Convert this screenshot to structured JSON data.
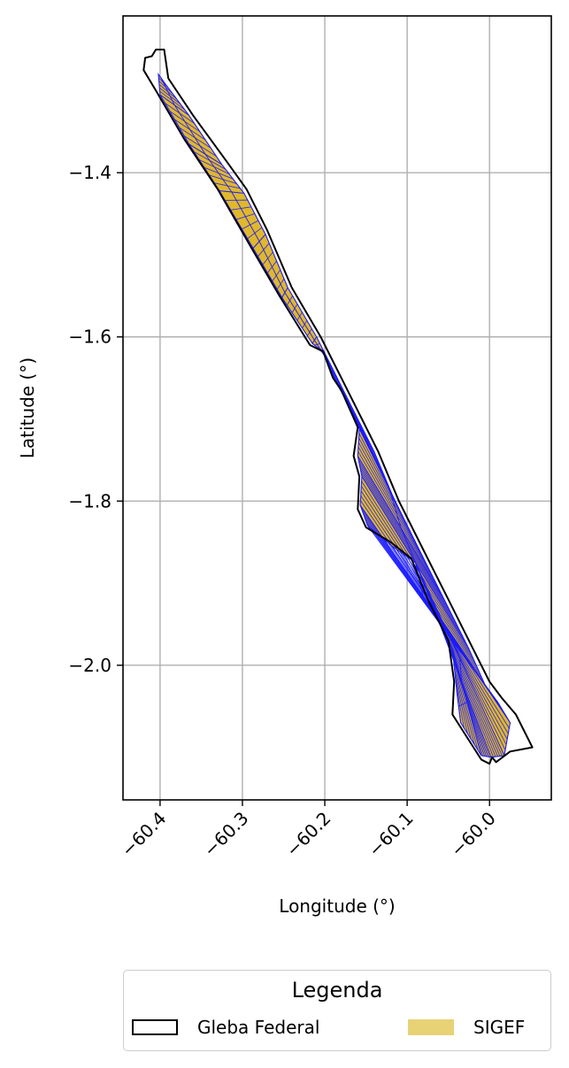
{
  "chart_data": {
    "type": "map",
    "xlabel": "Longitude (°)",
    "ylabel": "Latitude (°)",
    "xlim": [
      -60.445,
      -59.925
    ],
    "ylim": [
      -2.164,
      -1.209
    ],
    "xticks": [
      -60.4,
      -60.3,
      -60.2,
      -60.1,
      -60.0
    ],
    "xtick_labels": [
      "−60.4",
      "−60.3",
      "−60.2",
      "−60.1",
      "−60.0"
    ],
    "yticks": [
      -1.4,
      -1.6,
      -1.8,
      -2.0
    ],
    "ytick_labels": [
      "−1.4",
      "−1.6",
      "−1.8",
      "−2.0"
    ],
    "grid": true,
    "gleba_outline": [
      [
        -60.395,
        -1.25
      ],
      [
        -60.39,
        -1.285
      ],
      [
        -60.36,
        -1.33
      ],
      [
        -60.32,
        -1.385
      ],
      [
        -60.295,
        -1.42
      ],
      [
        -60.27,
        -1.47
      ],
      [
        -60.24,
        -1.54
      ],
      [
        -60.205,
        -1.6
      ],
      [
        -60.18,
        -1.65
      ],
      [
        -60.135,
        -1.74
      ],
      [
        -60.11,
        -1.8
      ],
      [
        -60.08,
        -1.86
      ],
      [
        -60.05,
        -1.92
      ],
      [
        -60.02,
        -1.98
      ],
      [
        -60.0,
        -2.02
      ],
      [
        -59.985,
        -2.04
      ],
      [
        -59.968,
        -2.06
      ],
      [
        -59.948,
        -2.1
      ],
      [
        -59.975,
        -2.105
      ],
      [
        -59.992,
        -2.118
      ],
      [
        -59.997,
        -2.112
      ],
      [
        -60.0,
        -2.12
      ],
      [
        -60.01,
        -2.115
      ],
      [
        -60.045,
        -2.06
      ],
      [
        -60.043,
        -2.02
      ],
      [
        -60.05,
        -1.97
      ],
      [
        -60.075,
        -1.92
      ],
      [
        -60.095,
        -1.87
      ],
      [
        -60.12,
        -1.85
      ],
      [
        -60.15,
        -1.832
      ],
      [
        -60.16,
        -1.81
      ],
      [
        -60.158,
        -1.77
      ],
      [
        -60.165,
        -1.745
      ],
      [
        -60.16,
        -1.71
      ],
      [
        -60.18,
        -1.665
      ],
      [
        -60.19,
        -1.65
      ],
      [
        -60.202,
        -1.618
      ],
      [
        -60.218,
        -1.61
      ],
      [
        -60.255,
        -1.55
      ],
      [
        -60.29,
        -1.49
      ],
      [
        -60.33,
        -1.42
      ],
      [
        -60.37,
        -1.36
      ],
      [
        -60.405,
        -1.3
      ],
      [
        -60.42,
        -1.275
      ],
      [
        -60.418,
        -1.26
      ],
      [
        -60.41,
        -1.258
      ],
      [
        -60.405,
        -1.25
      ]
    ],
    "sigef_corridor": [
      [
        -60.395,
        -1.29
      ],
      [
        -60.365,
        -1.33
      ],
      [
        -60.325,
        -1.39
      ],
      [
        -60.298,
        -1.425
      ],
      [
        -60.272,
        -1.475
      ],
      [
        -60.245,
        -1.54
      ],
      [
        -60.21,
        -1.6
      ],
      [
        -60.185,
        -1.65
      ],
      [
        -60.14,
        -1.74
      ],
      [
        -60.115,
        -1.8
      ],
      [
        -60.085,
        -1.86
      ],
      [
        -60.055,
        -1.92
      ],
      [
        -60.025,
        -1.98
      ],
      [
        -60.005,
        -2.025
      ],
      [
        -59.99,
        -2.045
      ],
      [
        -59.975,
        -2.07
      ],
      [
        -59.982,
        -2.11
      ],
      [
        -59.998,
        -2.112
      ],
      [
        -60.01,
        -2.11
      ],
      [
        -60.035,
        -2.07
      ],
      [
        -60.04,
        -2.03
      ],
      [
        -60.045,
        -1.98
      ],
      [
        -60.07,
        -1.925
      ],
      [
        -60.09,
        -1.875
      ],
      [
        -60.118,
        -1.855
      ],
      [
        -60.148,
        -1.83
      ],
      [
        -60.157,
        -1.805
      ],
      [
        -60.155,
        -1.77
      ],
      [
        -60.16,
        -1.745
      ],
      [
        -60.158,
        -1.712
      ],
      [
        -60.178,
        -1.668
      ],
      [
        -60.188,
        -1.652
      ],
      [
        -60.2,
        -1.62
      ],
      [
        -60.215,
        -1.608
      ],
      [
        -60.252,
        -1.552
      ],
      [
        -60.287,
        -1.492
      ],
      [
        -60.328,
        -1.422
      ],
      [
        -60.365,
        -1.365
      ],
      [
        -60.4,
        -1.305
      ],
      [
        -60.402,
        -1.28
      ]
    ],
    "legend": {
      "title": "Legenda",
      "placement": "lower-center",
      "entries": [
        {
          "label": "Gleba Federal",
          "style": "outline",
          "color": "#000000"
        },
        {
          "label": "SIGEF",
          "style": "fill",
          "color": "#e8d276"
        }
      ]
    },
    "colors": {
      "sigef_fill": "#e0b82a",
      "sigef_parcel_fill": "#c9b17a",
      "parcel_edge": "#1a1aff",
      "grid": "#b0b0b0",
      "outline": "#000000"
    }
  }
}
